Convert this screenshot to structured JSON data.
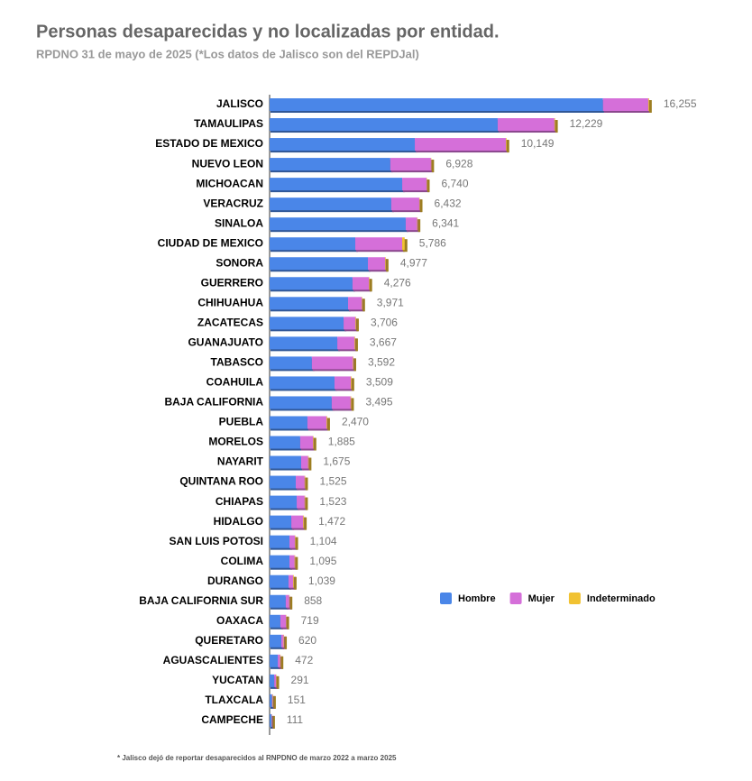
{
  "chart_data": {
    "type": "stacked-bar-horizontal",
    "title": "Personas desaparecidas y no localizadas por entidad.",
    "subtitle": "RPDNO 31 de mayo de 2025 (*Los datos de Jalisco son del REPDJal)",
    "footnote": "* Jalisco dejó de reportar desaparecidos al RNPDNO de marzo 2022 a marzo 2025",
    "categories": [
      "JALISCO",
      "TAMAULIPAS",
      "ESTADO DE MEXICO",
      "NUEVO LEON",
      "MICHOACAN",
      "VERACRUZ",
      "SINALOA",
      "CIUDAD DE MEXICO",
      "SONORA",
      "GUERRERO",
      "CHIHUAHUA",
      "ZACATECAS",
      "GUANAJUATO",
      "TABASCO",
      "COAHUILA",
      "BAJA CALIFORNIA",
      "PUEBLA",
      "MORELOS",
      "NAYARIT",
      "QUINTANA ROO",
      "CHIAPAS",
      "HIDALGO",
      "SAN LUIS POTOSI",
      "COLIMA",
      "DURANGO",
      "BAJA CALIFORNIA SUR",
      "OAXACA",
      "QUERETARO",
      "AGUASCALIENTES",
      "YUCATAN",
      "TLAXCALA",
      "CAMPECHE"
    ],
    "series": [
      {
        "name": "Hombre",
        "color": "#4a86e8",
        "values": [
          14280,
          9770,
          6220,
          5170,
          5680,
          5210,
          5830,
          3670,
          4210,
          3550,
          3360,
          3170,
          2900,
          1810,
          2780,
          2660,
          1620,
          1310,
          1350,
          1120,
          1160,
          930,
          850,
          850,
          810,
          690,
          460,
          500,
          350,
          200,
          100,
          80
        ]
      },
      {
        "name": "Mujer",
        "color": "#d56fd9",
        "values": [
          1940,
          2430,
          3900,
          1740,
          1040,
          1200,
          490,
          2010,
          740,
          700,
          590,
          510,
          740,
          1760,
          700,
          810,
          820,
          550,
          300,
          380,
          340,
          510,
          230,
          220,
          200,
          150,
          240,
          100,
          100,
          70,
          30,
          20
        ]
      },
      {
        "name": "Indeterminado",
        "color": "#f1c232",
        "values": [
          35,
          29,
          29,
          18,
          20,
          22,
          21,
          106,
          27,
          26,
          21,
          26,
          27,
          22,
          29,
          25,
          30,
          25,
          25,
          25,
          23,
          32,
          24,
          25,
          29,
          18,
          19,
          20,
          22,
          21,
          21,
          11
        ]
      }
    ],
    "total_labels": [
      "16,255",
      "12,229",
      "10,149",
      "6,928",
      "6,740",
      "6,432",
      "6,341",
      "5,786",
      "4,977",
      "4,276",
      "3,971",
      "3,706",
      "3,667",
      "3,592",
      "3,509",
      "3,495",
      "2,470",
      "1,885",
      "1,675",
      "1,525",
      "1,523",
      "1,472",
      "1,104",
      "1,095",
      "1,039",
      "858",
      "719",
      "620",
      "472",
      "291",
      "151",
      "111"
    ],
    "xlim": [
      0,
      16300
    ],
    "legend": "right"
  }
}
